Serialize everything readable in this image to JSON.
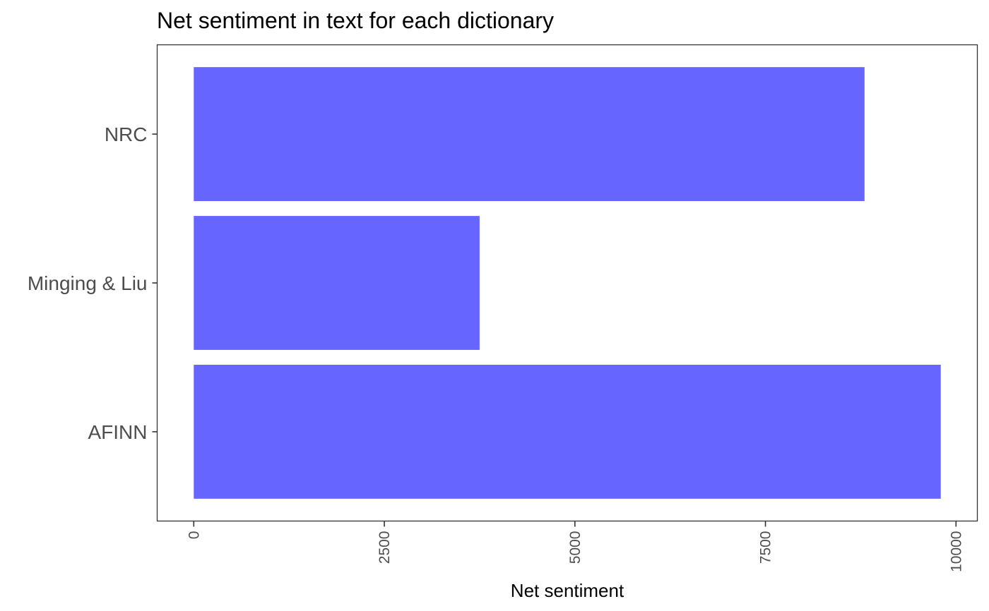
{
  "chart_data": {
    "type": "bar",
    "orientation": "horizontal",
    "title": "Net sentiment in text for each dictionary",
    "xlabel": "Net sentiment",
    "ylabel": "",
    "categories": [
      "AFINN",
      "Minging & Liu",
      "NRC"
    ],
    "values": [
      9800,
      3750,
      8800
    ],
    "xlim": [
      -480,
      10280
    ],
    "x_ticks": [
      0,
      2500,
      5000,
      7500,
      10000
    ],
    "x_tick_labels": [
      "0",
      "2500",
      "5000",
      "7500",
      "10000"
    ],
    "x_tick_label_rotation": "vertical",
    "bar_color": "#6666ff",
    "grid": false,
    "legend": "none",
    "panel_border": true
  }
}
